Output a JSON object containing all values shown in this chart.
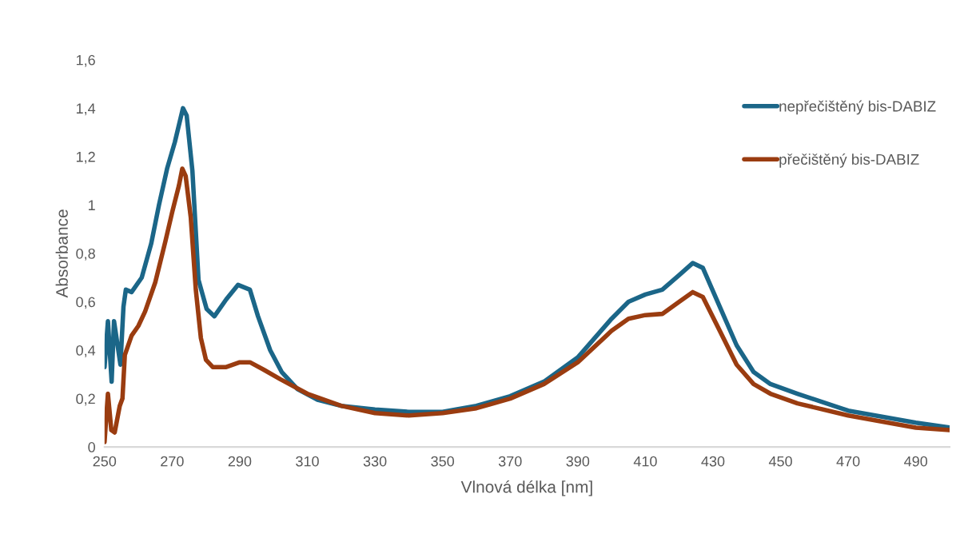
{
  "chart_data": {
    "type": "line",
    "xlabel": "Vlnová délka [nm]",
    "ylabel": "Absorbance",
    "xlim": [
      250,
      500
    ],
    "ylim": [
      0,
      1.6
    ],
    "xticks": [
      250,
      270,
      290,
      310,
      330,
      350,
      370,
      390,
      410,
      430,
      450,
      470,
      490
    ],
    "yticks": [
      0,
      {
        "value": 0.2,
        "label": "0,2"
      },
      {
        "value": 0.4,
        "label": "0,4"
      },
      {
        "value": 0.6,
        "label": "0,6"
      },
      {
        "value": 0.8,
        "label": "0,8"
      },
      1,
      {
        "value": 1.2,
        "label": "1,2"
      },
      {
        "value": 1.4,
        "label": "1,4"
      },
      {
        "value": 1.6,
        "label": "1,6"
      }
    ],
    "grid": false,
    "legend": "top right",
    "marker": "none",
    "line_style": "solid",
    "series": [
      {
        "name": "nepřečištěný bis-DABIZ",
        "color": "#1b6688",
        "x": [
          250,
          251,
          252.1,
          252.8,
          254.7,
          255.6,
          256.3,
          258,
          261,
          263.8,
          266.1,
          268.5,
          270.8,
          273.2,
          274.3,
          276,
          277.8,
          280.2,
          282.5,
          286,
          289.5,
          293,
          295.4,
          299,
          302.4,
          307,
          313,
          320,
          330,
          340,
          350,
          360,
          370,
          380,
          390,
          400,
          405,
          410,
          415,
          420,
          424,
          427,
          432,
          437,
          442,
          447,
          455,
          470,
          490,
          500
        ],
        "values": [
          0.33,
          0.52,
          0.27,
          0.52,
          0.34,
          0.58,
          0.65,
          0.64,
          0.7,
          0.84,
          1.0,
          1.15,
          1.26,
          1.4,
          1.37,
          1.14,
          0.69,
          0.57,
          0.54,
          0.61,
          0.67,
          0.65,
          0.54,
          0.4,
          0.31,
          0.24,
          0.195,
          0.17,
          0.155,
          0.145,
          0.145,
          0.17,
          0.21,
          0.27,
          0.37,
          0.53,
          0.6,
          0.63,
          0.65,
          0.71,
          0.76,
          0.74,
          0.58,
          0.42,
          0.31,
          0.26,
          0.22,
          0.15,
          0.1,
          0.08
        ]
      },
      {
        "name": "přečištěný bis-DABIZ",
        "color": "#9a3c10",
        "x": [
          250,
          251,
          252,
          253,
          254.5,
          255.3,
          256,
          258,
          260,
          262,
          265,
          268,
          270,
          272,
          273,
          274,
          275.5,
          277,
          278.5,
          280,
          282,
          286,
          290,
          293,
          297,
          302,
          310,
          320,
          330,
          340,
          350,
          360,
          370,
          380,
          390,
          400,
          405,
          410,
          415,
          420,
          424,
          427,
          432,
          437,
          442,
          447,
          455,
          470,
          490,
          500
        ],
        "values": [
          0.02,
          0.22,
          0.07,
          0.06,
          0.17,
          0.2,
          0.38,
          0.46,
          0.5,
          0.56,
          0.68,
          0.85,
          0.97,
          1.08,
          1.15,
          1.12,
          0.95,
          0.65,
          0.45,
          0.36,
          0.33,
          0.33,
          0.35,
          0.35,
          0.32,
          0.28,
          0.22,
          0.17,
          0.14,
          0.13,
          0.14,
          0.16,
          0.2,
          0.26,
          0.35,
          0.48,
          0.53,
          0.545,
          0.55,
          0.6,
          0.64,
          0.62,
          0.48,
          0.34,
          0.26,
          0.22,
          0.18,
          0.13,
          0.08,
          0.07
        ]
      }
    ]
  }
}
